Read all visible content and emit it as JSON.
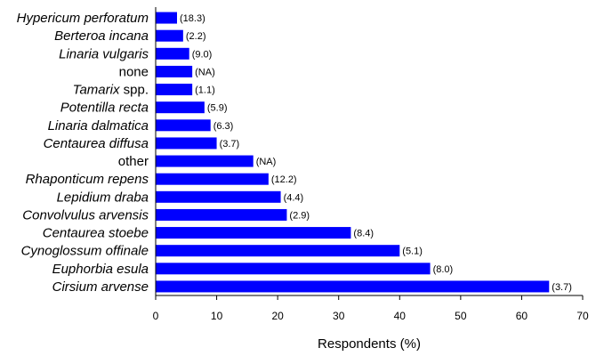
{
  "chart_data": {
    "type": "bar",
    "orientation": "horizontal",
    "categories": [
      "Hypericum perforatum",
      "Berteroa incana",
      "Linaria vulgaris",
      "none",
      "Tamarix spp.",
      "Potentilla recta",
      "Linaria dalmatica",
      "Centaurea diffusa",
      "other",
      "Rhaponticum repens",
      "Lepidium draba",
      "Convolvulus arvensis",
      "Centaurea stoebe",
      "Cynoglossum offinale",
      "Euphorbia esula",
      "Cirsium arvense"
    ],
    "category_parts": [
      [
        {
          "text": "Hypericum perforatum",
          "italic": true
        }
      ],
      [
        {
          "text": "Berteroa incana",
          "italic": true
        }
      ],
      [
        {
          "text": "Linaria vulgaris",
          "italic": true
        }
      ],
      [
        {
          "text": "none",
          "italic": false
        }
      ],
      [
        {
          "text": "Tamarix",
          "italic": true
        },
        {
          "text": " spp.",
          "italic": false
        }
      ],
      [
        {
          "text": "Potentilla recta",
          "italic": true
        }
      ],
      [
        {
          "text": "Linaria dalmatica",
          "italic": true
        }
      ],
      [
        {
          "text": "Centaurea diffusa",
          "italic": true
        }
      ],
      [
        {
          "text": "other",
          "italic": false
        }
      ],
      [
        {
          "text": "Rhaponticum repens",
          "italic": true
        }
      ],
      [
        {
          "text": "Lepidium draba",
          "italic": true
        }
      ],
      [
        {
          "text": "Convolvulus arvensis",
          "italic": true
        }
      ],
      [
        {
          "text": "Centaurea stoebe",
          "italic": true
        }
      ],
      [
        {
          "text": "Cynoglossum offinale",
          "italic": true
        }
      ],
      [
        {
          "text": "Euphorbia esula",
          "italic": true
        }
      ],
      [
        {
          "text": "Cirsium arvense",
          "italic": true
        }
      ]
    ],
    "values": [
      3.5,
      4.5,
      5.5,
      6,
      6,
      8,
      9,
      10,
      16,
      18.5,
      20.5,
      21.5,
      32,
      40,
      45,
      64.5
    ],
    "data_labels": [
      "(18.3)",
      "(2.2)",
      "(9.0)",
      "(NA)",
      "(1.1)",
      "(5.9)",
      "(6.3)",
      "(3.7)",
      "(NA)",
      "(12.2)",
      "(4.4)",
      "(2.9)",
      "(8.4)",
      "(5.1)",
      "(8.0)",
      "(3.7)"
    ],
    "xlabel": "Respondents (%)",
    "xlim": [
      0,
      70
    ],
    "xticks": [
      0,
      10,
      20,
      30,
      40,
      50,
      60,
      70
    ],
    "bar_color": "#0000ff",
    "grid": false
  }
}
